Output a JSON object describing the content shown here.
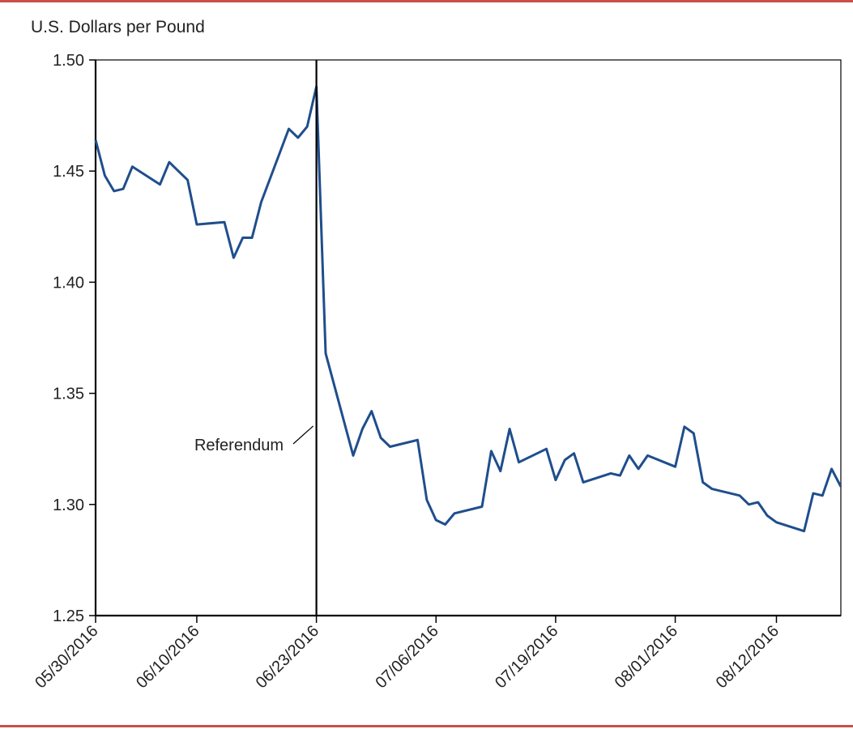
{
  "colors": {
    "rule": "#c8504a",
    "line": "#1f4e8c",
    "axis": "#000000"
  },
  "chart_data": {
    "type": "line",
    "title": "",
    "xlabel": "",
    "ylabel": "U.S. Dollars per Pound",
    "ylim": [
      1.25,
      1.5
    ],
    "yticks": [
      "1.25",
      "1.30",
      "1.35",
      "1.40",
      "1.45",
      "1.50"
    ],
    "yticks_values": [
      1.25,
      1.3,
      1.35,
      1.4,
      1.45,
      1.5
    ],
    "xlim": [
      "2016-05-30",
      "2016-08-19"
    ],
    "xticks": [
      "05/30/2016",
      "06/10/2016",
      "06/23/2016",
      "07/06/2016",
      "07/19/2016",
      "08/01/2016",
      "08/12/2016"
    ],
    "xticks_dates": [
      "2016-05-30",
      "2016-06-10",
      "2016-06-23",
      "2016-07-06",
      "2016-07-19",
      "2016-08-01",
      "2016-08-12"
    ],
    "grid": false,
    "legend": "none",
    "annotation": {
      "label": "Referendum",
      "date": "2016-06-23"
    },
    "series": [
      {
        "x": [
          "2016-05-30",
          "2016-05-31",
          "2016-06-01",
          "2016-06-02",
          "2016-06-03",
          "2016-06-06",
          "2016-06-07",
          "2016-06-08",
          "2016-06-09",
          "2016-06-10",
          "2016-06-13",
          "2016-06-14",
          "2016-06-15",
          "2016-06-16",
          "2016-06-17",
          "2016-06-20",
          "2016-06-21",
          "2016-06-22",
          "2016-06-23",
          "2016-06-24",
          "2016-06-27",
          "2016-06-28",
          "2016-06-29",
          "2016-06-30",
          "2016-07-01",
          "2016-07-04",
          "2016-07-05",
          "2016-07-06",
          "2016-07-07",
          "2016-07-08",
          "2016-07-11",
          "2016-07-12",
          "2016-07-13",
          "2016-07-14",
          "2016-07-15",
          "2016-07-18",
          "2016-07-19",
          "2016-07-20",
          "2016-07-21",
          "2016-07-22",
          "2016-07-25",
          "2016-07-26",
          "2016-07-27",
          "2016-07-28",
          "2016-07-29",
          "2016-08-01",
          "2016-08-02",
          "2016-08-03",
          "2016-08-04",
          "2016-08-05",
          "2016-08-08",
          "2016-08-09",
          "2016-08-10",
          "2016-08-11",
          "2016-08-12",
          "2016-08-15",
          "2016-08-16",
          "2016-08-17",
          "2016-08-18",
          "2016-08-19"
        ],
        "values": [
          1.464,
          1.448,
          1.441,
          1.442,
          1.452,
          1.444,
          1.454,
          1.45,
          1.446,
          1.426,
          1.427,
          1.411,
          1.42,
          1.42,
          1.436,
          1.469,
          1.465,
          1.47,
          1.488,
          1.368,
          1.322,
          1.334,
          1.342,
          1.33,
          1.326,
          1.329,
          1.302,
          1.293,
          1.291,
          1.296,
          1.299,
          1.324,
          1.315,
          1.334,
          1.319,
          1.325,
          1.311,
          1.32,
          1.323,
          1.31,
          1.314,
          1.313,
          1.322,
          1.316,
          1.322,
          1.317,
          1.335,
          1.332,
          1.31,
          1.307,
          1.304,
          1.3,
          1.301,
          1.295,
          1.292,
          1.288,
          1.305,
          1.304,
          1.316,
          1.308
        ]
      }
    ]
  }
}
